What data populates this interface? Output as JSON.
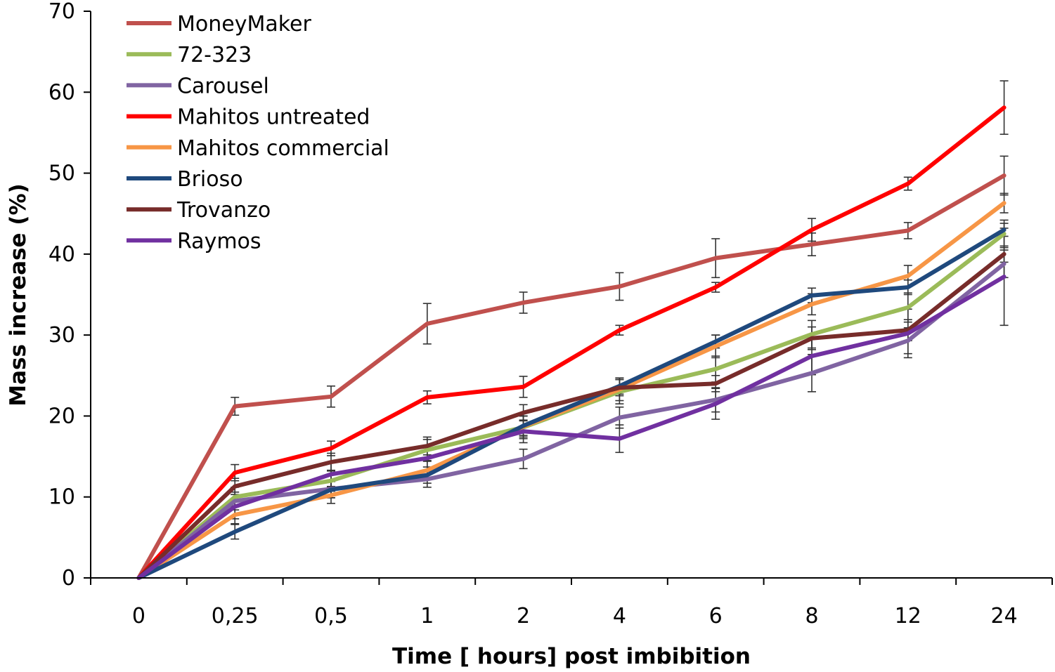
{
  "chart_data": {
    "type": "line",
    "title": "",
    "xlabel": "Time [ hours] post imbibition",
    "ylabel": "Mass increase (%)",
    "categories": [
      "0",
      "0,25",
      "0,5",
      "1",
      "2",
      "4",
      "6",
      "8",
      "12",
      "24"
    ],
    "ylim": [
      0,
      70
    ],
    "yticks": [
      0,
      10,
      20,
      30,
      40,
      50,
      60,
      70
    ],
    "legend_position": "top-left",
    "grid": false,
    "series": [
      {
        "name": "MoneyMaker",
        "color": "#c0504d",
        "values": [
          0,
          21.2,
          22.4,
          31.4,
          34.0,
          36.0,
          39.5,
          41.2,
          42.9,
          49.7
        ],
        "errors": [
          0,
          1.1,
          1.3,
          2.5,
          1.3,
          1.7,
          2.4,
          1.4,
          1.0,
          2.4
        ]
      },
      {
        "name": "72-323",
        "color": "#9bbb59",
        "values": [
          0,
          10.0,
          12.0,
          15.8,
          18.6,
          23.0,
          25.8,
          30.1,
          33.4,
          42.5
        ],
        "errors": [
          0,
          1.2,
          1.3,
          1.3,
          1.4,
          1.5,
          1.6,
          1.7,
          1.8,
          1.7
        ]
      },
      {
        "name": "Carousel",
        "color": "#8064a2",
        "values": [
          0,
          9.5,
          11.0,
          12.2,
          14.7,
          19.8,
          22.0,
          25.3,
          29.3,
          38.8
        ],
        "errors": [
          0,
          1.1,
          1.1,
          1.0,
          1.2,
          1.3,
          1.5,
          2.3,
          1.6,
          1.7
        ]
      },
      {
        "name": "Mahitos untreated",
        "color": "#ff0000",
        "values": [
          0,
          13.0,
          16.0,
          22.3,
          23.6,
          30.6,
          35.9,
          43.0,
          48.7,
          58.1
        ],
        "errors": [
          0,
          1.0,
          0.9,
          0.8,
          1.3,
          0.6,
          0.6,
          1.4,
          0.8,
          3.3
        ]
      },
      {
        "name": "Mahitos commercial",
        "color": "#f79646",
        "values": [
          0,
          7.8,
          10.2,
          13.3,
          18.7,
          23.3,
          28.6,
          33.8,
          37.3,
          46.3
        ],
        "errors": [
          0,
          1.1,
          1.0,
          1.1,
          1.3,
          1.4,
          1.4,
          1.3,
          1.3,
          1.2
        ]
      },
      {
        "name": "Brioso",
        "color": "#1f497d",
        "values": [
          0,
          5.7,
          10.9,
          12.7,
          18.8,
          23.7,
          29.2,
          34.9,
          35.9,
          43.0
        ],
        "errors": [
          0,
          0.9,
          1.0,
          1.0,
          1.2,
          1.0,
          0.8,
          0.9,
          0.9,
          0.8
        ]
      },
      {
        "name": "Trovanzo",
        "color": "#772c2a",
        "values": [
          0,
          11.3,
          14.3,
          16.3,
          20.4,
          23.5,
          24.0,
          29.6,
          30.6,
          40.0
        ],
        "errors": [
          0,
          1.0,
          1.1,
          1.1,
          1.0,
          1.0,
          1.0,
          1.4,
          1.3,
          1.0
        ]
      },
      {
        "name": "Raymos",
        "color": "#7030a0",
        "values": [
          0,
          8.8,
          12.8,
          14.8,
          18.1,
          17.2,
          21.5,
          27.4,
          30.2,
          37.2
        ],
        "errors": [
          0,
          1.5,
          1.5,
          1.6,
          1.4,
          1.7,
          1.9,
          2.3,
          3.0,
          6.0
        ]
      }
    ]
  }
}
